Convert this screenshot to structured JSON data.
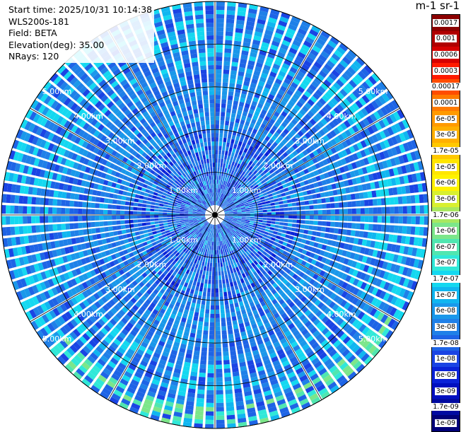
{
  "info": {
    "start_time": "Start time: 2025/10/31 10:14:38",
    "instrument": "WLS200s-181",
    "field": "Field: BETA",
    "elevation": "Elevation(deg): 35.00",
    "nrays": "NRays: 120"
  },
  "colorbar": {
    "unit": "m-1 sr-1",
    "labels": [
      "0.0017",
      "0.001",
      "0.0006",
      "0.0003",
      "0.00017",
      "0.0001",
      "6e-05",
      "3e-05",
      "1.7e-05",
      "1e-05",
      "6e-06",
      "3e-06",
      "1.7e-06",
      "1e-06",
      "6e-07",
      "3e-07",
      "1.7e-07",
      "1e-07",
      "6e-08",
      "3e-08",
      "1.7e-08",
      "1e-08",
      "6e-09",
      "3e-09",
      "1.7e-09",
      "1e-09"
    ],
    "colors": [
      "#8b0000",
      "#b00000",
      "#d60000",
      "#ff1a00",
      "#ff4d00",
      "#ff7a00",
      "#ff9a00",
      "#ffb000",
      "#ffc800",
      "#ffe600",
      "#fff200",
      "#d8f030",
      "#a8e860",
      "#7ce68a",
      "#50e6b0",
      "#30e8d8",
      "#14d8f0",
      "#10b6f0",
      "#1a98ea",
      "#1f80e8",
      "#1e64e6",
      "#1a44e4",
      "#0a22d8",
      "#0010c0",
      "#000aa0",
      "#000078"
    ]
  },
  "ppi": {
    "range_labels": [
      "1.00km",
      "2.00km",
      "3.00km",
      "4.00km",
      "5.00km"
    ],
    "nrays": 120
  }
}
